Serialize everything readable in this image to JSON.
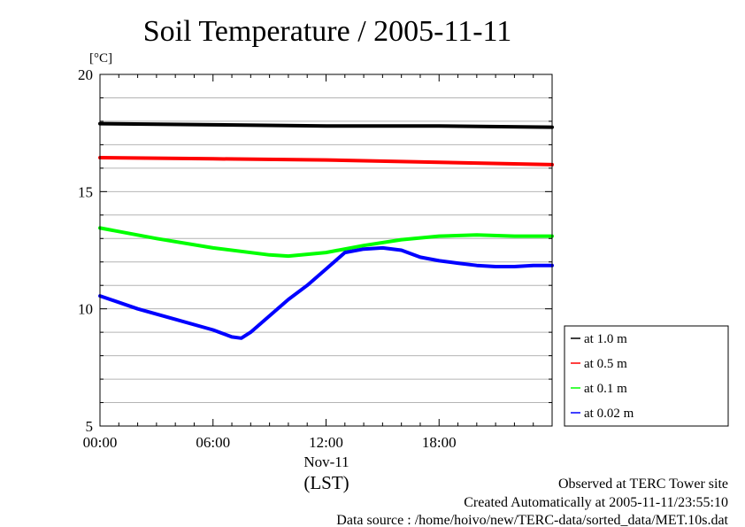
{
  "chart_data": {
    "type": "line",
    "title": "Soil Temperature / 2005-11-11",
    "ylabel": "[°C]",
    "ylim": [
      5,
      20
    ],
    "xlim": [
      0,
      24
    ],
    "y_ticks": [
      5,
      10,
      15,
      20
    ],
    "x_ticks": [
      {
        "value": 0,
        "label": "00:00"
      },
      {
        "value": 6,
        "label": "06:00"
      },
      {
        "value": 12,
        "label": "12:00"
      },
      {
        "value": 18,
        "label": "18:00"
      }
    ],
    "date_label": "Nov-11",
    "xlabel": "(LST)",
    "grid": true,
    "legend_position": "right",
    "series": [
      {
        "name": "at 1.0 m",
        "color": "#000000",
        "x": [
          0,
          6,
          12,
          18,
          24
        ],
        "values": [
          17.9,
          17.85,
          17.8,
          17.8,
          17.75
        ]
      },
      {
        "name": "at 0.5 m",
        "color": "#ff0000",
        "x": [
          0,
          6,
          12,
          18,
          24
        ],
        "values": [
          16.45,
          16.4,
          16.35,
          16.25,
          16.15
        ]
      },
      {
        "name": "at 0.1 m",
        "color": "#00ff00",
        "x": [
          0,
          3,
          6,
          9,
          10,
          12,
          14,
          16,
          18,
          20,
          22,
          24
        ],
        "values": [
          13.45,
          13.0,
          12.6,
          12.3,
          12.25,
          12.4,
          12.7,
          12.95,
          13.1,
          13.15,
          13.1,
          13.1
        ]
      },
      {
        "name": "at 0.02 m",
        "color": "#0000ff",
        "x": [
          0,
          2,
          4,
          6,
          7,
          7.5,
          8,
          9,
          10,
          11,
          12,
          13,
          14,
          15,
          16,
          17,
          18,
          19,
          20,
          21,
          22,
          23,
          24
        ],
        "values": [
          10.55,
          10.0,
          9.55,
          9.1,
          8.8,
          8.75,
          9.0,
          9.7,
          10.4,
          11.0,
          11.7,
          12.4,
          12.55,
          12.6,
          12.5,
          12.2,
          12.05,
          11.95,
          11.85,
          11.8,
          11.8,
          11.85,
          11.85
        ]
      }
    ]
  },
  "footer": {
    "line1": "Observed at TERC Tower site",
    "line2": "Created Automatically at 2005-11-11/23:55:10",
    "line3": "Data source : /home/hoivo/new/TERC-data/sorted_data/MET.10s.dat"
  }
}
